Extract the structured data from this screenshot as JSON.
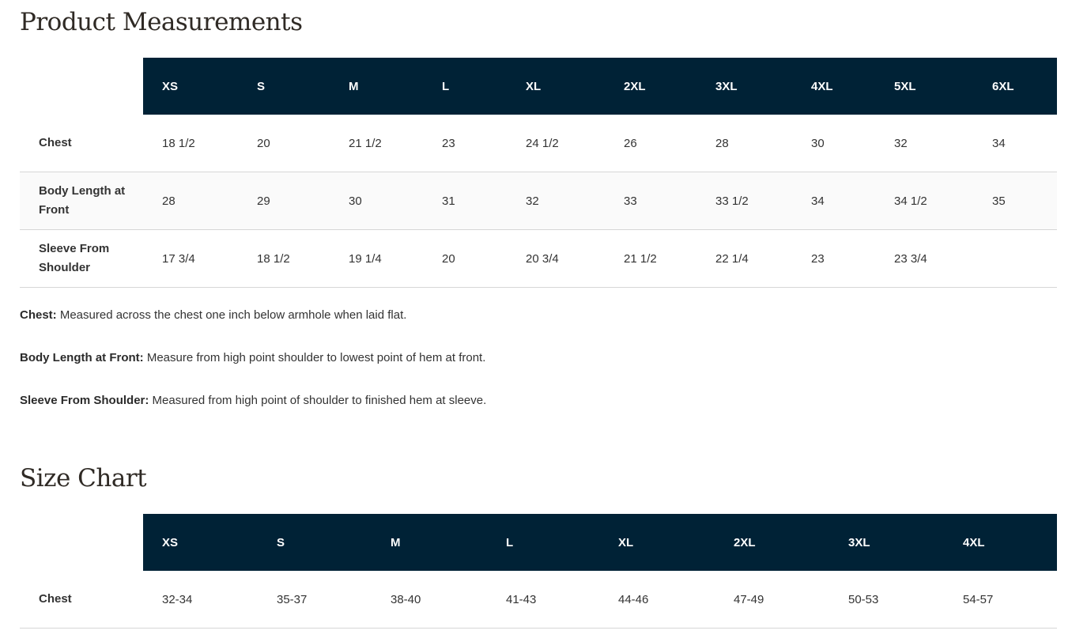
{
  "measurements": {
    "title": "Product Measurements",
    "sizes": [
      "XS",
      "S",
      "M",
      "L",
      "XL",
      "2XL",
      "3XL",
      "4XL",
      "5XL",
      "6XL"
    ],
    "rows": [
      {
        "label": "Chest",
        "values": [
          "18 1/2",
          "20",
          "21 1/2",
          "23",
          "24 1/2",
          "26",
          "28",
          "30",
          "32",
          "34"
        ]
      },
      {
        "label": "Body Length at Front",
        "values": [
          "28",
          "29",
          "30",
          "31",
          "32",
          "33",
          "33 1/2",
          "34",
          "34 1/2",
          "35"
        ]
      },
      {
        "label": "Sleeve From Shoulder",
        "values": [
          "17 3/4",
          "18 1/2",
          "19 1/4",
          "20",
          "20 3/4",
          "21 1/2",
          "22 1/4",
          "23",
          "23 3/4",
          ""
        ]
      }
    ],
    "notes": [
      {
        "term": "Chest:",
        "text": " Measured across the chest one inch below armhole when laid flat."
      },
      {
        "term": "Body Length at Front:",
        "text": " Measure from high point shoulder to lowest point of hem at front."
      },
      {
        "term": "Sleeve From Shoulder:",
        "text": " Measured from high point of shoulder to finished hem at sleeve."
      }
    ]
  },
  "size_chart": {
    "title": "Size Chart",
    "sizes": [
      "XS",
      "S",
      "M",
      "L",
      "XL",
      "2XL",
      "3XL",
      "4XL"
    ],
    "rows": [
      {
        "label": "Chest",
        "values": [
          "32-34",
          "35-37",
          "38-40",
          "41-43",
          "44-46",
          "47-49",
          "50-53",
          "54-57"
        ]
      }
    ]
  },
  "colors": {
    "header_bg": "#002236",
    "header_text": "#ffffff",
    "alt_row": "#fafafa"
  }
}
